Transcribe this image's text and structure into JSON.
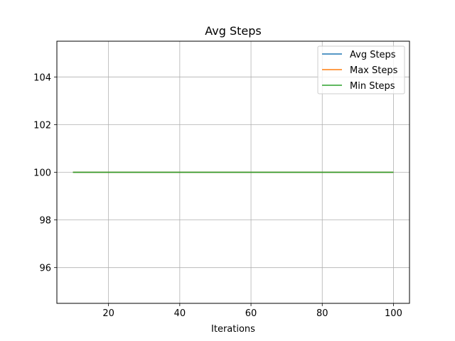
{
  "chart_data": {
    "type": "line",
    "title": "Avg Steps",
    "xlabel": "Iterations",
    "ylabel": "",
    "xlim": [
      5.5,
      104.5
    ],
    "ylim": [
      94.5,
      105.5
    ],
    "xticks": [
      20,
      40,
      60,
      80,
      100
    ],
    "yticks": [
      96,
      98,
      100,
      102,
      104
    ],
    "grid": true,
    "legend_position": "top-right",
    "x": [
      10,
      20,
      30,
      40,
      50,
      60,
      70,
      80,
      90,
      100
    ],
    "series": [
      {
        "name": "Avg Steps",
        "color": "#1f77b4",
        "values": [
          100,
          100,
          100,
          100,
          100,
          100,
          100,
          100,
          100,
          100
        ]
      },
      {
        "name": "Max Steps",
        "color": "#ff7f0e",
        "values": [
          100,
          100,
          100,
          100,
          100,
          100,
          100,
          100,
          100,
          100
        ]
      },
      {
        "name": "Min Steps",
        "color": "#2ca02c",
        "values": [
          100,
          100,
          100,
          100,
          100,
          100,
          100,
          100,
          100,
          100
        ]
      }
    ]
  }
}
